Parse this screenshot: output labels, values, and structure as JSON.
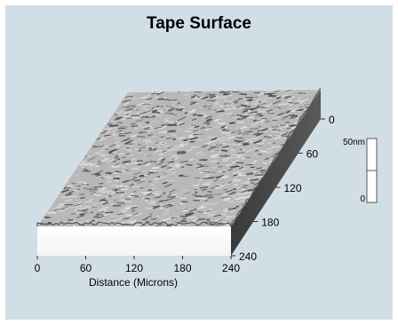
{
  "chart_data": {
    "type": "surface",
    "title": "Tape Surface",
    "xlabel": "Distance (Microns)",
    "x_ticks": [
      "0",
      "60",
      "120",
      "180",
      "240"
    ],
    "y_ticks": [
      "0",
      "60",
      "120",
      "180",
      "240"
    ],
    "x_range": [
      0,
      240
    ],
    "y_range": [
      0,
      240
    ],
    "z_scale": {
      "max_label": "50nm",
      "min_label": "0",
      "range": [
        0,
        50
      ]
    },
    "colors": {
      "background": "#d2dee6",
      "surface_light": "#e2e2e2",
      "surface_dark": "#444444"
    }
  }
}
